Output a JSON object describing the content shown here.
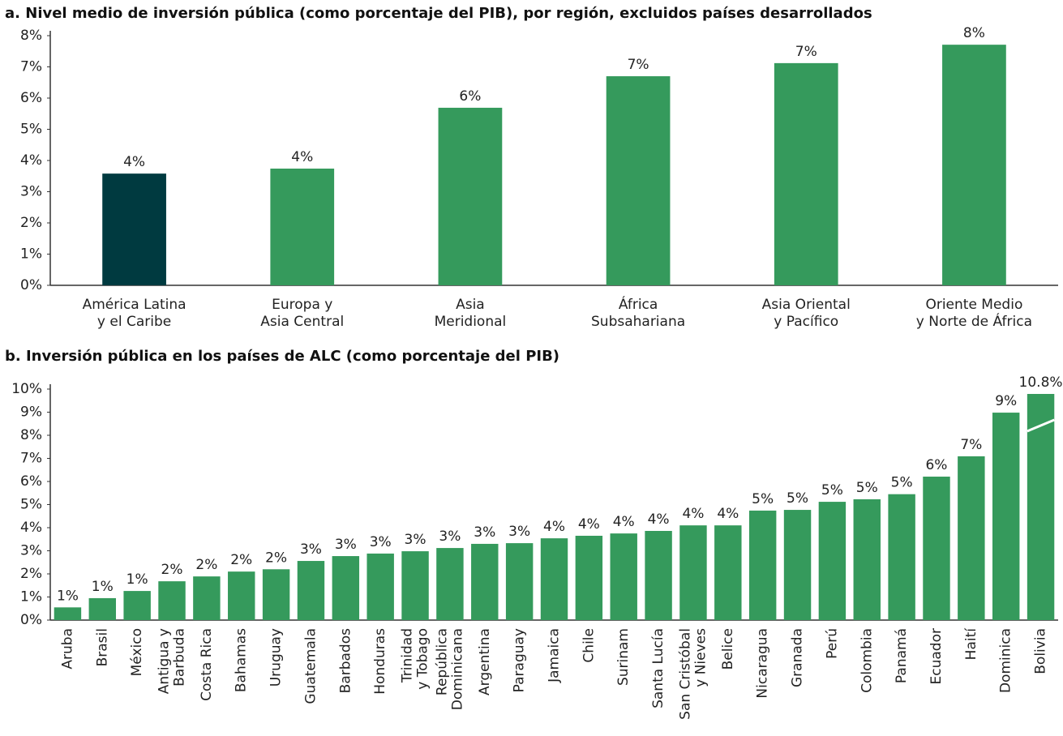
{
  "chart_data": [
    {
      "type": "bar",
      "title": "a. Nivel medio de inversión pública (como porcentaje del PIB), por región, excluidos países desarrollados",
      "categories": [
        [
          "América Latina",
          "y el Caribe"
        ],
        [
          "Europa y",
          "Asia Central"
        ],
        [
          "Asia",
          "Meridional"
        ],
        [
          "África",
          "Subsahariana"
        ],
        [
          "Asia Oriental",
          "y Pacífico"
        ],
        [
          "Oriente Medio",
          "y Norte de África"
        ]
      ],
      "values": [
        3.58,
        3.74,
        5.69,
        6.7,
        7.12,
        7.71
      ],
      "value_labels": [
        "4%",
        "4%",
        "6%",
        "7%",
        "7%",
        "8%"
      ],
      "colors": [
        "#003a40",
        "#359a5c",
        "#359a5c",
        "#359a5c",
        "#359a5c",
        "#359a5c"
      ],
      "ylim": [
        0,
        8
      ],
      "yticks": [
        {
          "value": 0,
          "label": "0%"
        },
        {
          "value": 1,
          "label": "1%"
        },
        {
          "value": 2,
          "label": "2%"
        },
        {
          "value": 3,
          "label": "3%"
        },
        {
          "value": 4,
          "label": "4%"
        },
        {
          "value": 5,
          "label": "5%"
        },
        {
          "value": 6,
          "label": "6%"
        },
        {
          "value": 7,
          "label": "7%"
        },
        {
          "value": 8,
          "label": "8%"
        }
      ],
      "grid": false
    },
    {
      "type": "bar",
      "title": "b. Inversión pública en los países de ALC (como porcentaje del PIB)",
      "categories": [
        [
          "Aruba"
        ],
        [
          "Brasil"
        ],
        [
          "México"
        ],
        [
          "Antigua y",
          "Barbuda"
        ],
        [
          "Costa Rica"
        ],
        [
          "Bahamas"
        ],
        [
          "Uruguay"
        ],
        [
          "Guatemala"
        ],
        [
          "Barbados"
        ],
        [
          "Honduras"
        ],
        [
          "Trinidad",
          "y Tobago"
        ],
        [
          "República",
          "Dominicana"
        ],
        [
          "Argentina"
        ],
        [
          "Paraguay"
        ],
        [
          "Jamaica"
        ],
        [
          "Chile"
        ],
        [
          "Surinam"
        ],
        [
          "Santa Lucía"
        ],
        [
          "San Cristóbal",
          "y Nieves"
        ],
        [
          "Belice"
        ],
        [
          "Nicaragua"
        ],
        [
          "Granada"
        ],
        [
          "Perú"
        ],
        [
          "Colombia"
        ],
        [
          "Panamá"
        ],
        [
          "Ecuador"
        ],
        [
          "Haití"
        ],
        [
          "Dominica"
        ],
        [
          "Bolivia"
        ]
      ],
      "values": [
        0.55,
        0.95,
        1.26,
        1.68,
        1.89,
        2.1,
        2.2,
        2.56,
        2.77,
        2.88,
        2.98,
        3.12,
        3.3,
        3.33,
        3.54,
        3.65,
        3.75,
        3.86,
        4.1,
        4.1,
        4.74,
        4.77,
        5.12,
        5.23,
        5.45,
        6.21,
        7.09,
        8.98,
        10.8
      ],
      "value_labels": [
        "1%",
        "1%",
        "1%",
        "2%",
        "2%",
        "2%",
        "2%",
        "3%",
        "3%",
        "3%",
        "3%",
        "3%",
        "3%",
        "3%",
        "4%",
        "4%",
        "4%",
        "4%",
        "4%",
        "4%",
        "5%",
        "5%",
        "5%",
        "5%",
        "5%",
        "6%",
        "7%",
        "9%",
        "10.8%"
      ],
      "color": "#359a5c",
      "ylim": [
        0,
        10
      ],
      "yticks": [
        {
          "value": 0,
          "label": "0%"
        },
        {
          "value": 1,
          "label": "1%"
        },
        {
          "value": 2,
          "label": "2%"
        },
        {
          "value": 3,
          "label": "3%"
        },
        {
          "value": 4,
          "label": "4%"
        },
        {
          "value": 5,
          "label": "5%"
        },
        {
          "value": 6,
          "label": "6%"
        },
        {
          "value": 7,
          "label": "7%"
        },
        {
          "value": 8,
          "label": "8%"
        },
        {
          "value": 9,
          "label": "9%"
        },
        {
          "value": 10,
          "label": "10%"
        }
      ],
      "grid": false
    }
  ]
}
